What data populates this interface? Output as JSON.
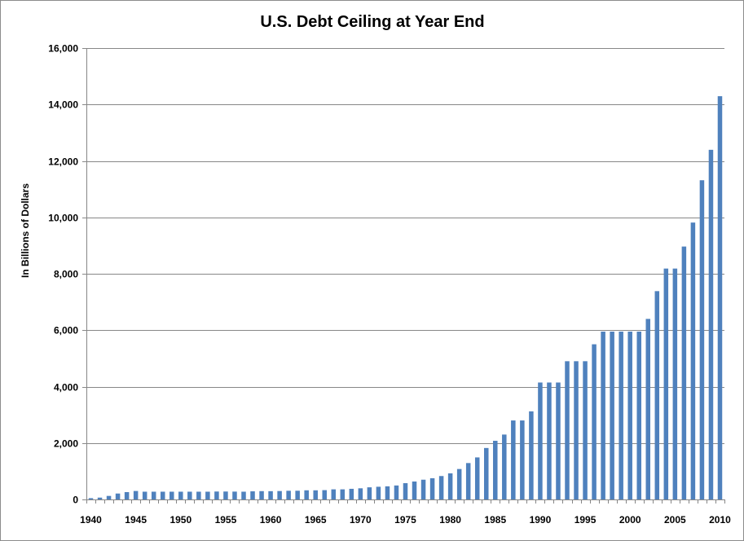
{
  "colors": {
    "bar": "#4F81BD",
    "grid": "#878787",
    "axis": "#878787"
  },
  "chart_data": {
    "type": "bar",
    "title": "U.S. Debt Ceiling at Year End",
    "xlabel": "",
    "ylabel": "In Billions of Dollars",
    "ylim": [
      0,
      16000
    ],
    "yticks": [
      0,
      2000,
      4000,
      6000,
      8000,
      10000,
      12000,
      14000,
      16000
    ],
    "ytick_labels": [
      "0",
      "2,000",
      "4,000",
      "6,000",
      "8,000",
      "10,000",
      "12,000",
      "14,000",
      "16,000"
    ],
    "xtick_labels": [
      "1940",
      "1945",
      "1950",
      "1955",
      "1960",
      "1965",
      "1970",
      "1975",
      "1980",
      "1985",
      "1990",
      "1995",
      "2000",
      "2005",
      "2010"
    ],
    "grid": true,
    "legend": "none",
    "categories": [
      1940,
      1941,
      1942,
      1943,
      1944,
      1945,
      1946,
      1947,
      1948,
      1949,
      1950,
      1951,
      1952,
      1953,
      1954,
      1955,
      1956,
      1957,
      1958,
      1959,
      1960,
      1961,
      1962,
      1963,
      1964,
      1965,
      1966,
      1967,
      1968,
      1969,
      1970,
      1971,
      1972,
      1973,
      1974,
      1975,
      1976,
      1977,
      1978,
      1979,
      1980,
      1981,
      1982,
      1983,
      1984,
      1985,
      1986,
      1987,
      1988,
      1989,
      1990,
      1991,
      1992,
      1993,
      1994,
      1995,
      1996,
      1997,
      1998,
      1999,
      2000,
      2001,
      2002,
      2003,
      2004,
      2005,
      2006,
      2007,
      2008,
      2009,
      2010
    ],
    "values": [
      45,
      65,
      125,
      210,
      260,
      300,
      275,
      275,
      275,
      275,
      275,
      275,
      275,
      275,
      281,
      281,
      278,
      275,
      288,
      295,
      293,
      298,
      308,
      309,
      324,
      324,
      330,
      358,
      358,
      377,
      395,
      430,
      450,
      465,
      495,
      577,
      636,
      700,
      752,
      830,
      925,
      1079,
      1290,
      1490,
      1824,
      2079,
      2300,
      2800,
      2800,
      3123,
      4145,
      4145,
      4145,
      4900,
      4900,
      4900,
      5500,
      5950,
      5950,
      5950,
      5950,
      5950,
      6400,
      7384,
      8184,
      8184,
      8965,
      9815,
      11315,
      12394,
      14294
    ]
  }
}
